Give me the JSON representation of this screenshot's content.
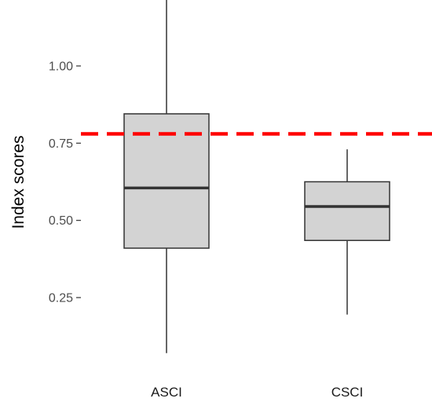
{
  "chart_data": {
    "type": "boxplot",
    "title": "",
    "xlabel": "",
    "ylabel": "Index scores",
    "ylim": [
      0.05,
      1.22
    ],
    "yticks": [
      0.25,
      0.5,
      0.75,
      1.0
    ],
    "ytick_labels": [
      "0.25",
      "0.50",
      "0.75",
      "1.00"
    ],
    "categories": [
      "ASCI",
      "CSCI"
    ],
    "boxes": [
      {
        "category": "ASCI",
        "min": 0.07,
        "q1": 0.41,
        "median": 0.605,
        "q3": 0.845,
        "max": 1.22
      },
      {
        "category": "CSCI",
        "min": 0.195,
        "q1": 0.435,
        "median": 0.545,
        "q3": 0.625,
        "max": 0.73
      }
    ],
    "reference_line": {
      "y": 0.78,
      "style": "dashed",
      "color": "#ff0000"
    },
    "box_fill": "#d3d3d3",
    "box_stroke": "#333333",
    "grid": false,
    "legend": "none"
  }
}
